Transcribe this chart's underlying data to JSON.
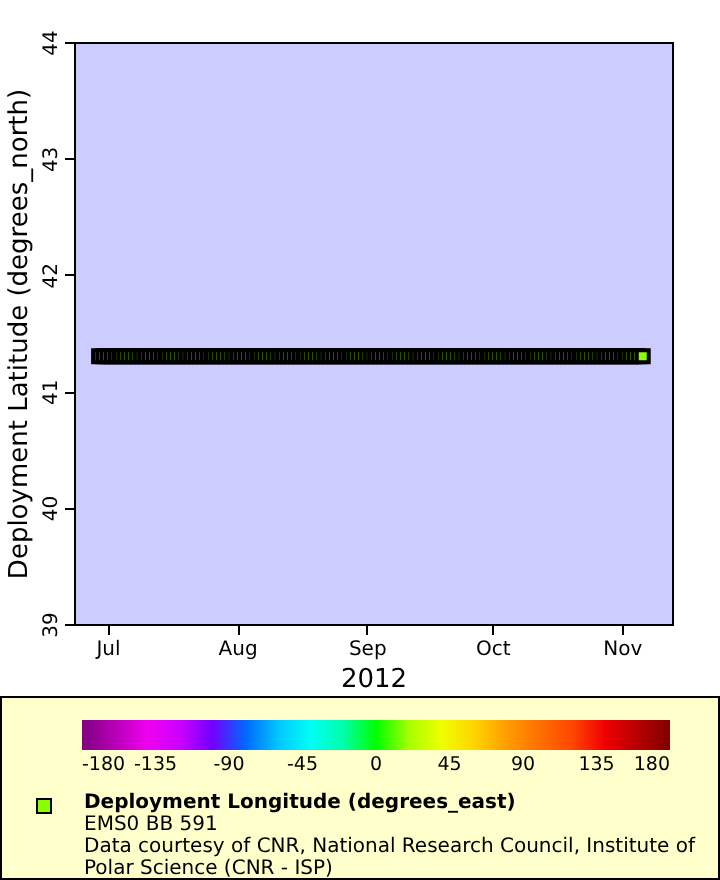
{
  "chart_data": {
    "type": "scatter",
    "title": "EMS0 BB 591",
    "xlabel": "2012",
    "ylabel": "Deployment Latitude (degrees_north)",
    "clabel": "Deployment Longitude (degrees_east)",
    "annotations": [
      "Data courtesy of CNR, National Research Council, Institute of Polar Science (CNR - ISP)"
    ],
    "x": [
      "2012-06-29",
      "2012-06-30",
      "2012-07-01",
      "2012-07-02",
      "2012-07-03",
      "2012-07-04",
      "2012-07-05",
      "2012-07-06",
      "2012-07-07",
      "2012-07-08",
      "2012-07-09",
      "2012-07-10",
      "2012-07-11",
      "2012-07-12",
      "2012-07-13",
      "2012-07-14",
      "2012-07-15",
      "2012-07-16",
      "2012-07-17",
      "2012-07-18",
      "2012-07-19",
      "2012-07-20",
      "2012-07-21",
      "2012-07-22",
      "2012-07-23",
      "2012-07-24",
      "2012-07-25",
      "2012-07-26",
      "2012-07-27",
      "2012-07-28",
      "2012-07-29",
      "2012-07-30",
      "2012-07-31",
      "2012-08-01",
      "2012-08-02",
      "2012-08-03",
      "2012-08-04",
      "2012-08-05",
      "2012-08-06",
      "2012-08-07",
      "2012-08-08",
      "2012-08-09",
      "2012-08-10",
      "2012-08-11",
      "2012-08-12",
      "2012-08-13",
      "2012-08-14",
      "2012-08-15",
      "2012-08-16",
      "2012-08-17",
      "2012-08-18",
      "2012-08-19",
      "2012-08-20",
      "2012-08-21",
      "2012-08-22",
      "2012-08-23",
      "2012-08-24",
      "2012-08-25",
      "2012-08-26",
      "2012-08-27",
      "2012-08-28",
      "2012-08-29",
      "2012-08-30",
      "2012-08-31",
      "2012-09-01",
      "2012-09-02",
      "2012-09-03",
      "2012-09-04",
      "2012-09-05",
      "2012-09-06",
      "2012-09-07",
      "2012-09-08",
      "2012-09-09",
      "2012-09-10",
      "2012-09-11",
      "2012-09-12",
      "2012-09-13",
      "2012-09-14",
      "2012-09-15",
      "2012-09-16",
      "2012-09-17",
      "2012-09-18",
      "2012-09-19",
      "2012-09-20",
      "2012-09-21",
      "2012-09-22",
      "2012-09-23",
      "2012-09-24",
      "2012-09-25",
      "2012-09-26",
      "2012-09-27",
      "2012-09-28",
      "2012-09-29",
      "2012-09-30",
      "2012-10-01",
      "2012-10-02",
      "2012-10-03",
      "2012-10-04",
      "2012-10-05",
      "2012-10-06",
      "2012-10-07",
      "2012-10-08",
      "2012-10-09",
      "2012-10-10",
      "2012-10-11",
      "2012-10-12",
      "2012-10-13",
      "2012-10-14",
      "2012-10-15",
      "2012-10-16",
      "2012-10-17",
      "2012-10-18",
      "2012-10-19",
      "2012-10-20",
      "2012-10-21",
      "2012-10-22",
      "2012-10-23",
      "2012-10-24",
      "2012-10-25",
      "2012-10-26",
      "2012-10-27",
      "2012-10-28",
      "2012-10-29",
      "2012-10-30",
      "2012-10-31",
      "2012-11-01",
      "2012-11-02",
      "2012-11-03",
      "2012-11-04",
      "2012-11-05",
      "2012-11-06"
    ],
    "values": [
      41.3,
      41.3,
      41.3,
      41.3,
      41.3,
      41.3,
      41.3,
      41.3,
      41.3,
      41.3,
      41.3,
      41.3,
      41.3,
      41.3,
      41.3,
      41.3,
      41.3,
      41.3,
      41.3,
      41.3,
      41.3,
      41.3,
      41.3,
      41.3,
      41.3,
      41.3,
      41.3,
      41.3,
      41.3,
      41.3,
      41.3,
      41.3,
      41.3,
      41.3,
      41.3,
      41.3,
      41.3,
      41.3,
      41.3,
      41.3,
      41.3,
      41.3,
      41.3,
      41.3,
      41.3,
      41.3,
      41.3,
      41.3,
      41.3,
      41.3,
      41.3,
      41.3,
      41.3,
      41.3,
      41.3,
      41.3,
      41.3,
      41.3,
      41.3,
      41.3,
      41.3,
      41.3,
      41.3,
      41.3,
      41.3,
      41.3,
      41.3,
      41.3,
      41.3,
      41.3,
      41.3,
      41.3,
      41.3,
      41.3,
      41.3,
      41.3,
      41.3,
      41.3,
      41.3,
      41.3,
      41.3,
      41.3,
      41.3,
      41.3,
      41.3,
      41.3,
      41.3,
      41.3,
      41.3,
      41.3,
      41.3,
      41.3,
      41.3,
      41.3,
      41.3,
      41.3,
      41.3,
      41.3,
      41.3,
      41.3,
      41.3,
      41.3,
      41.3,
      41.3,
      41.3,
      41.3,
      41.3,
      41.3,
      41.3,
      41.3,
      41.3,
      41.3,
      41.3,
      41.3,
      41.3,
      41.3,
      41.3,
      41.3,
      41.3,
      41.3,
      41.3,
      41.3,
      41.3,
      41.3,
      41.3,
      41.3,
      41.3,
      41.3,
      41.3,
      41.3,
      41.3
    ],
    "cvalues": [
      14,
      14,
      14,
      14,
      14,
      14,
      14,
      14,
      14,
      14,
      14,
      14,
      14,
      14,
      14,
      14,
      14,
      14,
      14,
      14,
      14,
      14,
      14,
      14,
      14,
      14,
      14,
      14,
      14,
      14,
      14,
      14,
      14,
      14,
      14,
      14,
      14,
      14,
      14,
      14,
      14,
      14,
      14,
      14,
      14,
      14,
      14,
      14,
      14,
      14,
      14,
      14,
      14,
      14,
      14,
      14,
      14,
      14,
      14,
      14,
      14,
      14,
      14,
      14,
      14,
      14,
      14,
      14,
      14,
      14,
      14,
      14,
      14,
      14,
      14,
      14,
      14,
      14,
      14,
      14,
      14,
      14,
      14,
      14,
      14,
      14,
      14,
      14,
      14,
      14,
      14,
      14,
      14,
      14,
      14,
      14,
      14,
      14,
      14,
      14,
      14,
      14,
      14,
      14,
      14,
      14,
      14,
      14,
      14,
      14,
      14,
      14,
      14,
      14,
      14,
      14,
      14,
      14,
      14,
      14,
      14,
      14,
      14,
      14,
      14,
      14,
      14,
      14,
      14,
      14,
      14
    ],
    "marker": "square",
    "xlim": [
      "2012-06-23",
      "2012-11-13"
    ],
    "xticks": [
      {
        "value": "2012-07-01",
        "label": "Jul"
      },
      {
        "value": "2012-08-01",
        "label": "Aug"
      },
      {
        "value": "2012-09-01",
        "label": "Sep"
      },
      {
        "value": "2012-10-01",
        "label": "Oct"
      },
      {
        "value": "2012-11-01",
        "label": "Nov"
      }
    ],
    "ylim": [
      39,
      44
    ],
    "yticks": [
      39,
      40,
      41,
      42,
      43,
      44
    ],
    "clim": [
      -180,
      180
    ],
    "cticks": [
      -180,
      -135,
      -90,
      -45,
      0,
      45,
      90,
      135,
      180
    ],
    "grid": false
  }
}
